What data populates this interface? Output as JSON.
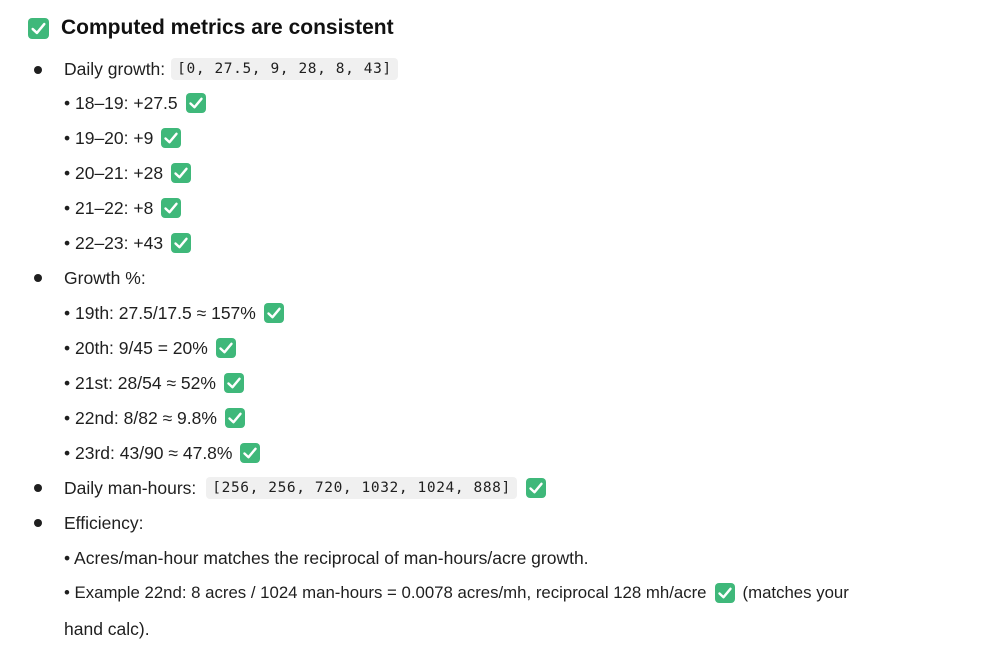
{
  "heading": {
    "text": "Computed metrics are consistent",
    "icon": "check-mark-button-icon"
  },
  "daily_growth": {
    "label": "Daily growth:",
    "code": "[0, 27.5, 9, 28, 8, 43]",
    "items": [
      "• 18–19: +27.5",
      "• 19–20: +9",
      "• 20–21: +28",
      "• 21–22: +8",
      "• 22–23: +43"
    ]
  },
  "growth_pct": {
    "label": "Growth %:",
    "items": [
      "• 19th: 27.5/17.5 ≈ 157%",
      "• 20th: 9/45 = 20%",
      "• 21st: 28/54 ≈ 52%",
      "• 22nd: 8/82 ≈ 9.8%",
      "• 23rd: 43/90 ≈ 47.8%"
    ]
  },
  "man_hours": {
    "label": "Daily man-hours:",
    "code": "[256, 256, 720, 1032, 1024, 888]"
  },
  "efficiency": {
    "label": "Efficiency:",
    "line1": "• Acres/man-hour matches the reciprocal of man-hours/acre growth.",
    "line2_pre": "• Example 22nd: 8 acres / 1024 man-hours = 0.0078 acres/mh, reciprocal 128 mh/acre",
    "line2_post": "(matches your",
    "line3": "hand calc)."
  },
  "colors": {
    "check_bg": "#3fb87a",
    "code_bg": "#f0f0f0"
  }
}
